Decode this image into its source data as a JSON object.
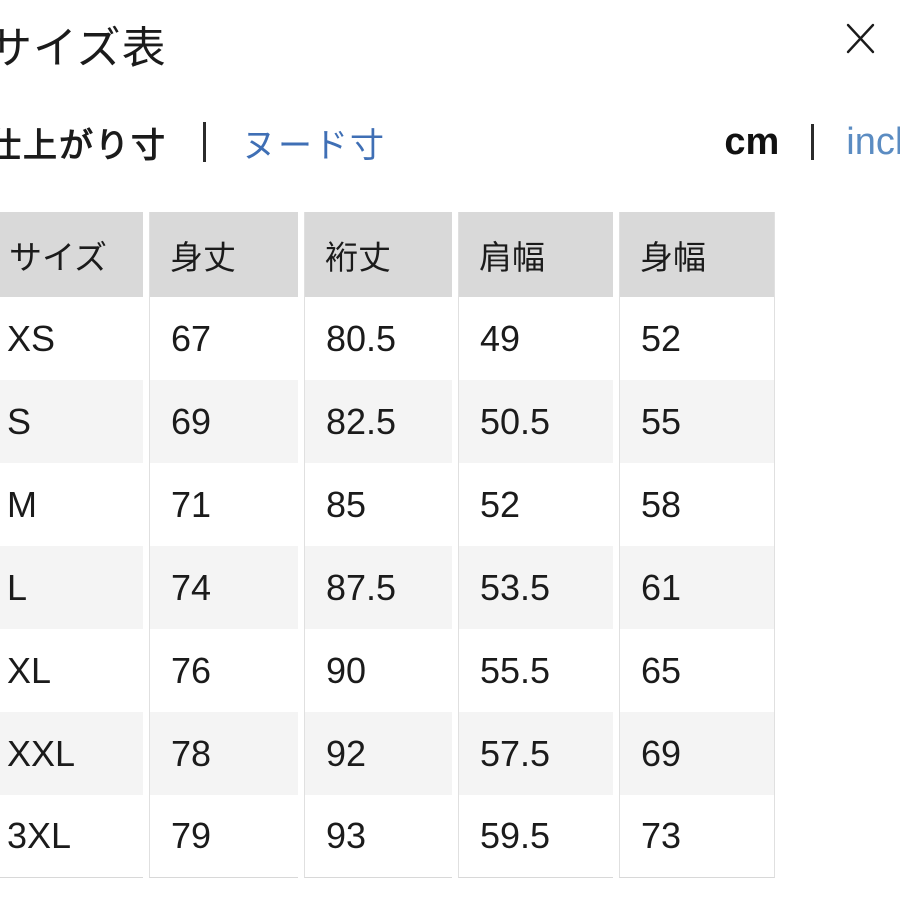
{
  "modal": {
    "title": "サイズ表"
  },
  "measure_toggle": {
    "finished_label": "仕上がり寸",
    "nude_label": "ヌード寸"
  },
  "unit_toggle": {
    "cm_label": "cm",
    "inch_label": "inch"
  },
  "icons": {
    "close": "✕"
  },
  "table": {
    "columns": [
      "サイズ",
      "身丈",
      "裄丈",
      "肩幅",
      "身幅"
    ],
    "rows": [
      [
        "XS",
        "67",
        "80.5",
        "49",
        "52"
      ],
      [
        "S",
        "69",
        "82.5",
        "50.5",
        "55"
      ],
      [
        "M",
        "71",
        "85",
        "52",
        "58"
      ],
      [
        "L",
        "74",
        "87.5",
        "53.5",
        "61"
      ],
      [
        "XL",
        "76",
        "90",
        "55.5",
        "65"
      ],
      [
        "XXL",
        "78",
        "92",
        "57.5",
        "69"
      ],
      [
        "3XL",
        "79",
        "93",
        "59.5",
        "73"
      ]
    ]
  },
  "colors": {
    "text": "#1b1b1b",
    "link_blue": "#3f6fb5",
    "inch_blue": "#5b8cc2",
    "header_bg": "#d9d9d9",
    "alt_row_bg": "#f4f4f4",
    "cell_border": "#e0e0e0"
  }
}
